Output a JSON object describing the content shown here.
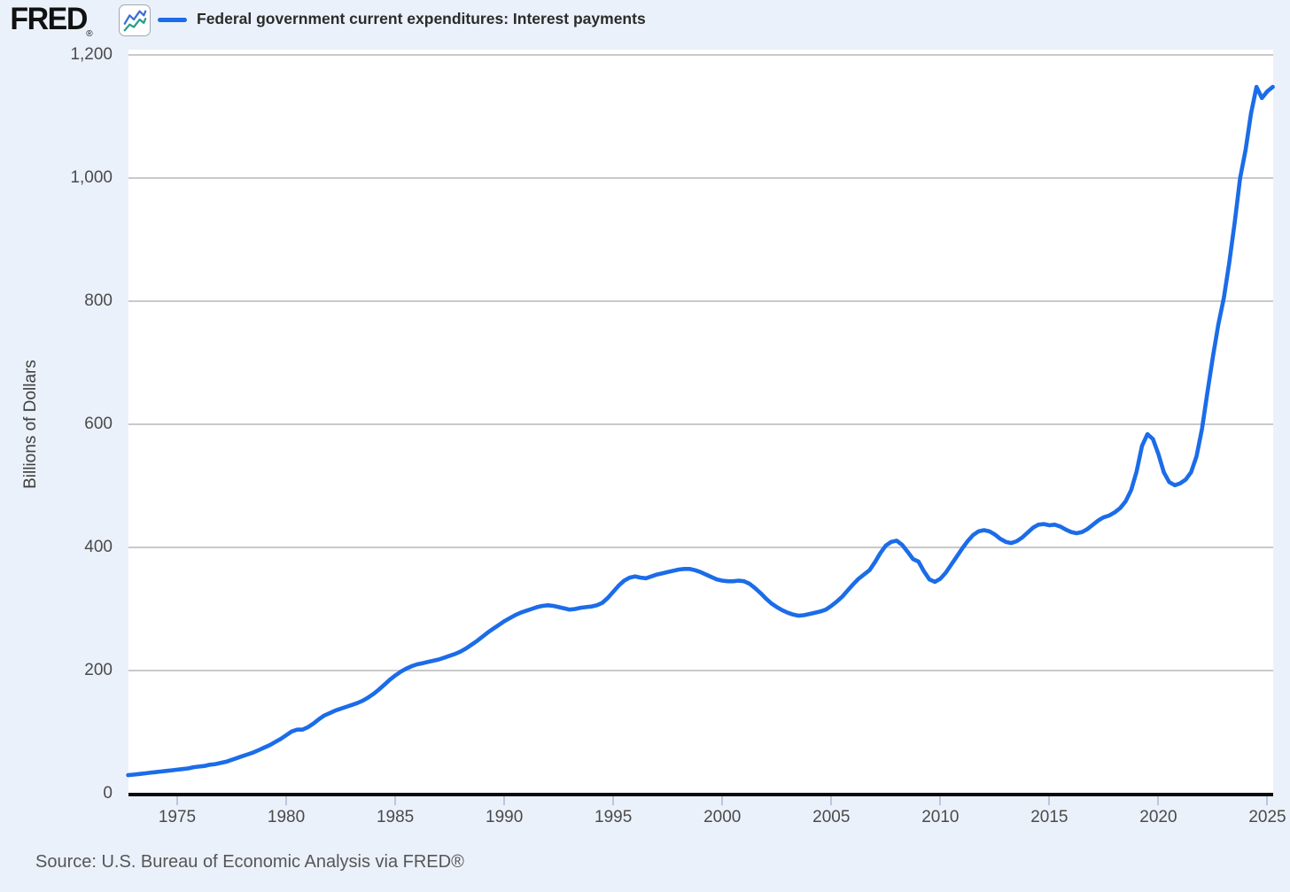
{
  "header": {
    "logo_text": "FRED",
    "registered_mark": "®",
    "legend_swatch_color": "#1b6ce8",
    "series_label": "Federal government current expenditures: Interest payments"
  },
  "source_note": "Source: U.S. Bureau of Economic Analysis via FRED®",
  "colors": {
    "page_background": "#ebf1fb",
    "plot_background": "#ffffff",
    "gridline": "#c9c9c9",
    "axis_line": "#0a0a0a",
    "tick_mark": "#b9c6dd",
    "series_line": "#1b6ce8",
    "icon_line_blue": "#3a6fd8",
    "icon_line_teal": "#27a08b"
  },
  "chart_data": {
    "type": "line",
    "title": "Federal government current expenditures: Interest payments",
    "xlabel": "",
    "ylabel": "Billions of Dollars",
    "units": "Billions of Dollars",
    "frequency": "quarterly",
    "grid": "horizontal",
    "legend_position": "top-left",
    "xlim": [
      1972.75,
      2025.25
    ],
    "ylim": [
      0,
      1200
    ],
    "x_tick_values": [
      1975,
      1980,
      1985,
      1990,
      1995,
      2000,
      2005,
      2010,
      2015,
      2020,
      2025
    ],
    "x_tick_labels": [
      "1975",
      "1980",
      "1985",
      "1990",
      "1995",
      "2000",
      "2005",
      "2010",
      "2015",
      "2020",
      "2025"
    ],
    "y_tick_values": [
      0,
      200,
      400,
      600,
      800,
      1000,
      1200
    ],
    "y_tick_labels": [
      "0",
      "200",
      "400",
      "600",
      "800",
      "1,000",
      "1,200"
    ],
    "series": [
      {
        "name": "Federal government current expenditures: Interest payments",
        "color": "#1b6ce8",
        "data": [
          [
            1972.75,
            30
          ],
          [
            1973,
            31
          ],
          [
            1973.25,
            32
          ],
          [
            1973.5,
            33
          ],
          [
            1973.75,
            34
          ],
          [
            1974,
            35
          ],
          [
            1974.25,
            36
          ],
          [
            1974.5,
            37
          ],
          [
            1974.75,
            38
          ],
          [
            1975,
            39
          ],
          [
            1975.25,
            40
          ],
          [
            1975.5,
            41
          ],
          [
            1975.75,
            43
          ],
          [
            1976,
            44
          ],
          [
            1976.25,
            45
          ],
          [
            1976.5,
            47
          ],
          [
            1976.75,
            48
          ],
          [
            1977,
            50
          ],
          [
            1977.25,
            52
          ],
          [
            1977.5,
            55
          ],
          [
            1977.75,
            58
          ],
          [
            1978,
            61
          ],
          [
            1978.25,
            64
          ],
          [
            1978.5,
            67
          ],
          [
            1978.75,
            71
          ],
          [
            1979,
            75
          ],
          [
            1979.25,
            79
          ],
          [
            1979.5,
            84
          ],
          [
            1979.75,
            89
          ],
          [
            1980,
            95
          ],
          [
            1980.25,
            101
          ],
          [
            1980.5,
            104
          ],
          [
            1980.75,
            104
          ],
          [
            1981,
            108
          ],
          [
            1981.25,
            114
          ],
          [
            1981.5,
            121
          ],
          [
            1981.75,
            127
          ],
          [
            1982,
            131
          ],
          [
            1982.25,
            135
          ],
          [
            1982.5,
            138
          ],
          [
            1982.75,
            141
          ],
          [
            1983,
            144
          ],
          [
            1983.25,
            147
          ],
          [
            1983.5,
            151
          ],
          [
            1983.75,
            156
          ],
          [
            1984,
            162
          ],
          [
            1984.25,
            169
          ],
          [
            1984.5,
            177
          ],
          [
            1984.75,
            185
          ],
          [
            1985,
            192
          ],
          [
            1985.25,
            198
          ],
          [
            1985.5,
            203
          ],
          [
            1985.75,
            207
          ],
          [
            1986,
            210
          ],
          [
            1986.25,
            212
          ],
          [
            1986.5,
            214
          ],
          [
            1986.75,
            216
          ],
          [
            1987,
            218
          ],
          [
            1987.25,
            221
          ],
          [
            1987.5,
            224
          ],
          [
            1987.75,
            227
          ],
          [
            1988,
            231
          ],
          [
            1988.25,
            236
          ],
          [
            1988.5,
            242
          ],
          [
            1988.75,
            248
          ],
          [
            1989,
            255
          ],
          [
            1989.25,
            262
          ],
          [
            1989.5,
            268
          ],
          [
            1989.75,
            274
          ],
          [
            1990,
            280
          ],
          [
            1990.25,
            285
          ],
          [
            1990.5,
            290
          ],
          [
            1990.75,
            294
          ],
          [
            1991,
            297
          ],
          [
            1991.25,
            300
          ],
          [
            1991.5,
            303
          ],
          [
            1991.75,
            305
          ],
          [
            1992,
            306
          ],
          [
            1992.25,
            305
          ],
          [
            1992.5,
            303
          ],
          [
            1992.75,
            301
          ],
          [
            1993,
            299
          ],
          [
            1993.25,
            300
          ],
          [
            1993.5,
            302
          ],
          [
            1993.75,
            303
          ],
          [
            1994,
            304
          ],
          [
            1994.25,
            306
          ],
          [
            1994.5,
            310
          ],
          [
            1994.75,
            318
          ],
          [
            1995,
            328
          ],
          [
            1995.25,
            338
          ],
          [
            1995.5,
            346
          ],
          [
            1995.75,
            351
          ],
          [
            1996,
            353
          ],
          [
            1996.25,
            351
          ],
          [
            1996.5,
            350
          ],
          [
            1996.75,
            353
          ],
          [
            1997,
            356
          ],
          [
            1997.25,
            358
          ],
          [
            1997.5,
            360
          ],
          [
            1997.75,
            362
          ],
          [
            1998,
            364
          ],
          [
            1998.25,
            365
          ],
          [
            1998.5,
            365
          ],
          [
            1998.75,
            363
          ],
          [
            1999,
            360
          ],
          [
            1999.25,
            356
          ],
          [
            1999.5,
            352
          ],
          [
            1999.75,
            348
          ],
          [
            2000,
            346
          ],
          [
            2000.25,
            345
          ],
          [
            2000.5,
            345
          ],
          [
            2000.75,
            346
          ],
          [
            2001,
            345
          ],
          [
            2001.25,
            341
          ],
          [
            2001.5,
            334
          ],
          [
            2001.75,
            326
          ],
          [
            2002,
            317
          ],
          [
            2002.25,
            309
          ],
          [
            2002.5,
            303
          ],
          [
            2002.75,
            298
          ],
          [
            2003,
            294
          ],
          [
            2003.25,
            291
          ],
          [
            2003.5,
            289
          ],
          [
            2003.75,
            290
          ],
          [
            2004,
            292
          ],
          [
            2004.25,
            294
          ],
          [
            2004.5,
            296
          ],
          [
            2004.75,
            299
          ],
          [
            2005,
            305
          ],
          [
            2005.25,
            312
          ],
          [
            2005.5,
            320
          ],
          [
            2005.75,
            330
          ],
          [
            2006,
            340
          ],
          [
            2006.25,
            349
          ],
          [
            2006.5,
            356
          ],
          [
            2006.75,
            363
          ],
          [
            2007,
            376
          ],
          [
            2007.25,
            391
          ],
          [
            2007.5,
            403
          ],
          [
            2007.75,
            409
          ],
          [
            2008,
            411
          ],
          [
            2008.25,
            404
          ],
          [
            2008.5,
            393
          ],
          [
            2008.75,
            381
          ],
          [
            2009,
            377
          ],
          [
            2009.25,
            361
          ],
          [
            2009.5,
            348
          ],
          [
            2009.75,
            344
          ],
          [
            2010,
            349
          ],
          [
            2010.25,
            359
          ],
          [
            2010.5,
            372
          ],
          [
            2010.75,
            385
          ],
          [
            2011,
            398
          ],
          [
            2011.25,
            410
          ],
          [
            2011.5,
            420
          ],
          [
            2011.75,
            426
          ],
          [
            2012,
            428
          ],
          [
            2012.25,
            426
          ],
          [
            2012.5,
            421
          ],
          [
            2012.75,
            414
          ],
          [
            2013,
            409
          ],
          [
            2013.25,
            407
          ],
          [
            2013.5,
            410
          ],
          [
            2013.75,
            416
          ],
          [
            2014,
            424
          ],
          [
            2014.25,
            432
          ],
          [
            2014.5,
            437
          ],
          [
            2014.75,
            438
          ],
          [
            2015,
            436
          ],
          [
            2015.25,
            437
          ],
          [
            2015.5,
            434
          ],
          [
            2015.75,
            429
          ],
          [
            2016,
            425
          ],
          [
            2016.25,
            423
          ],
          [
            2016.5,
            425
          ],
          [
            2016.75,
            430
          ],
          [
            2017,
            437
          ],
          [
            2017.25,
            444
          ],
          [
            2017.5,
            449
          ],
          [
            2017.75,
            452
          ],
          [
            2018,
            457
          ],
          [
            2018.25,
            464
          ],
          [
            2018.5,
            475
          ],
          [
            2018.75,
            493
          ],
          [
            2019,
            523
          ],
          [
            2019.25,
            565
          ],
          [
            2019.5,
            584
          ],
          [
            2019.75,
            576
          ],
          [
            2020,
            552
          ],
          [
            2020.25,
            522
          ],
          [
            2020.5,
            506
          ],
          [
            2020.75,
            501
          ],
          [
            2021,
            504
          ],
          [
            2021.25,
            510
          ],
          [
            2021.5,
            522
          ],
          [
            2021.75,
            548
          ],
          [
            2022,
            592
          ],
          [
            2022.25,
            652
          ],
          [
            2022.5,
            710
          ],
          [
            2022.75,
            762
          ],
          [
            2023,
            805
          ],
          [
            2023.25,
            862
          ],
          [
            2023.5,
            928
          ],
          [
            2023.75,
            1000
          ],
          [
            2024,
            1046
          ],
          [
            2024.25,
            1105
          ],
          [
            2024.5,
            1148
          ],
          [
            2024.75,
            1130
          ],
          [
            2025,
            1141
          ],
          [
            2025.25,
            1148
          ]
        ]
      }
    ]
  }
}
